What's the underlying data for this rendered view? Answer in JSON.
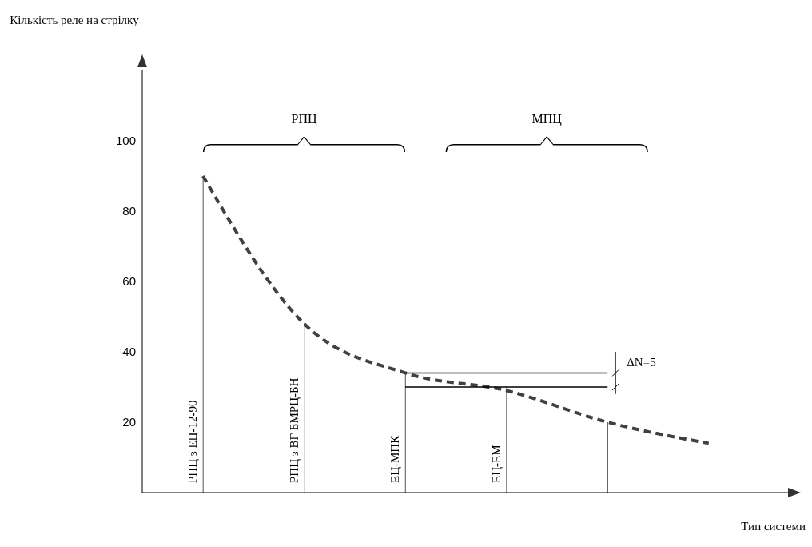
{
  "chart_data": {
    "type": "line",
    "xlabel": "Тип системи",
    "ylabel": "Кількість реле на стрілку",
    "categories": [
      "РПЦ з ЕЦ-12-90",
      "РПЦ з ВГ БМРЦ-БН",
      "ЕЦ-МПК",
      "ЕЦ-ЕМ",
      null,
      null
    ],
    "series": [
      {
        "type": "bar",
        "color": "#555555",
        "values": [
          90,
          48,
          34,
          30,
          20,
          null
        ]
      },
      {
        "line_style": "dashed",
        "color": "#404040",
        "values": [
          90,
          48,
          34,
          29,
          20,
          14
        ]
      },
      {
        "type": "line",
        "line_style": "solid",
        "color": "#000000",
        "values": [
          null,
          null,
          34,
          34,
          34,
          null
        ]
      },
      {
        "type": "line",
        "line_style": "solid",
        "color": "#000000",
        "values": [
          null,
          null,
          30,
          30,
          30,
          null
        ]
      }
    ],
    "ylim": [
      0,
      120
    ],
    "yticks": [
      20,
      40,
      60,
      80,
      100
    ],
    "marker": "none",
    "annotations": [
      "РПЦ",
      "МПЦ",
      "ΔN=5"
    ]
  }
}
